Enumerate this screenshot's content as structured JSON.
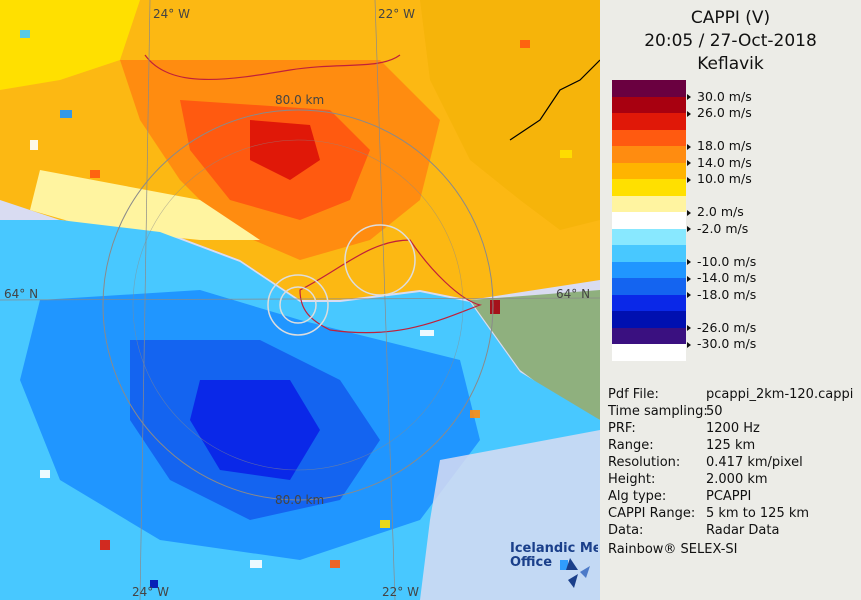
{
  "header": {
    "product": "CAPPI (V)",
    "datetime": "20:05 / 27-Oct-2018",
    "station": "Keflavik"
  },
  "colors": {
    "land": "#8fb07e",
    "sea_background": "#d9dcf2",
    "coastline": "#000000",
    "range_ring": "#8a8a8a",
    "scale": [
      "#6a0040",
      "#a80010",
      "#e01808",
      "#ff5a10",
      "#ff8c10",
      "#ffb400",
      "#ffe000",
      "#fff4a0",
      "#ffffff",
      "#88e8ff",
      "#48c8ff",
      "#2096ff",
      "#1464f0",
      "#0a28e8",
      "#0010b0",
      "#3a1080",
      "#ffffff"
    ]
  },
  "legend": {
    "unit_ticks": [
      {
        "label": "30.0 m/s",
        "row": 1
      },
      {
        "label": "26.0 m/s",
        "row": 2
      },
      {
        "label": "18.0 m/s",
        "row": 4
      },
      {
        "label": "14.0 m/s",
        "row": 5
      },
      {
        "label": "10.0 m/s",
        "row": 6
      },
      {
        "label": "2.0 m/s",
        "row": 8
      },
      {
        "label": "-2.0 m/s",
        "row": 9
      },
      {
        "label": "-10.0 m/s",
        "row": 11
      },
      {
        "label": "-14.0 m/s",
        "row": 12
      },
      {
        "label": "-18.0 m/s",
        "row": 13
      },
      {
        "label": "-26.0 m/s",
        "row": 15
      },
      {
        "label": "-30.0 m/s",
        "row": 16
      }
    ]
  },
  "map_labels": {
    "lon_top": "24° W",
    "lon_top_right": "22° W",
    "lat_left": "64° N",
    "lat_right": "64° N",
    "lon_bottom_left": "24° W",
    "lon_bottom_right": "22° W",
    "ring_north": "80.0 km",
    "ring_south": "80.0 km"
  },
  "info": {
    "rows": [
      {
        "key": "Pdf File:",
        "value": "pcappi_2km-120.cappi"
      },
      {
        "key": "Time sampling:",
        "value": "50"
      },
      {
        "key": "PRF:",
        "value": "1200 Hz"
      },
      {
        "key": "Range:",
        "value": "125 km"
      },
      {
        "key": "Resolution:",
        "value": "0.417 km/pixel"
      },
      {
        "key": "Height:",
        "value": "2.000 km"
      },
      {
        "key": "Alg type:",
        "value": "PCAPPI"
      },
      {
        "key": "CAPPI Range:",
        "value": "5 km to 125 km"
      },
      {
        "key": "Data:",
        "value": "Radar Data"
      }
    ],
    "footer": "Rainbow® SELEX-SI"
  },
  "logo": {
    "line1": "Icelandic Met",
    "line2": "Office"
  }
}
